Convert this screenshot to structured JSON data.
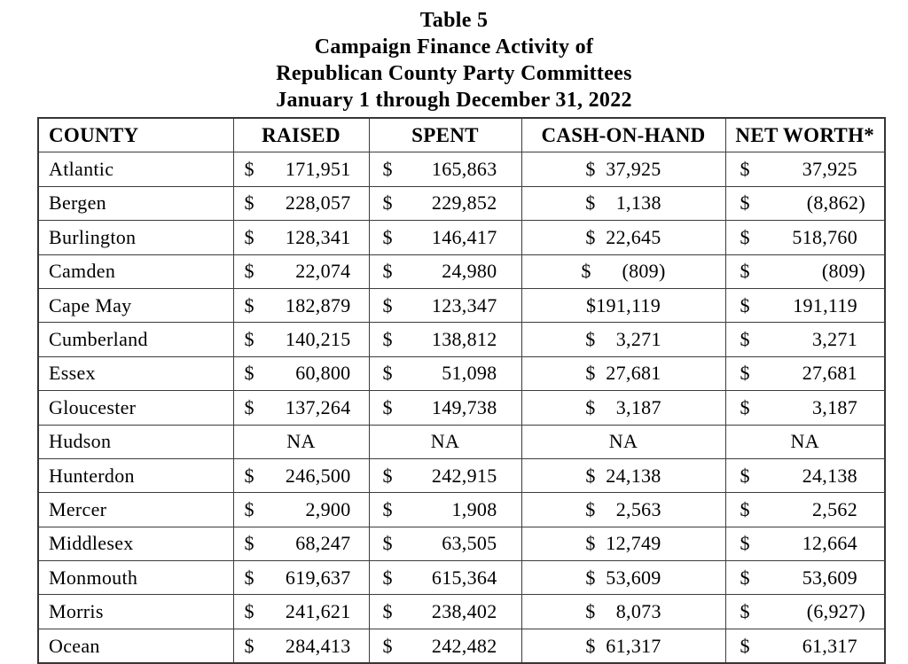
{
  "title": {
    "lines": [
      "Table 5",
      "Campaign Finance Activity of",
      "Republican County Party Committees",
      "January 1 through December 31, 2022"
    ]
  },
  "table": {
    "columns": [
      "COUNTY",
      "RAISED",
      "SPENT",
      "CASH-ON-HAND",
      "NET WORTH*"
    ],
    "currency_symbol": "$",
    "na_label": "NA",
    "rows": [
      {
        "county": "Atlantic",
        "raised": "171,951",
        "spent": "165,863",
        "cash": "$  37,925",
        "net": "37,925"
      },
      {
        "county": "Bergen",
        "raised": "228,057",
        "spent": "229,852",
        "cash": "$    1,138",
        "net": "(8,862)"
      },
      {
        "county": "Burlington",
        "raised": "128,341",
        "spent": "146,417",
        "cash": "$  22,645",
        "net": "518,760"
      },
      {
        "county": "Camden",
        "raised": "22,074",
        "spent": "24,980",
        "cash": "$      (809)",
        "net": "(809)"
      },
      {
        "county": "Cape May",
        "raised": "182,879",
        "spent": "123,347",
        "cash": "$191,119",
        "net": "191,119"
      },
      {
        "county": "Cumberland",
        "raised": "140,215",
        "spent": "138,812",
        "cash": "$    3,271",
        "net": "3,271"
      },
      {
        "county": "Essex",
        "raised": "60,800",
        "spent": "51,098",
        "cash": "$  27,681",
        "net": "27,681"
      },
      {
        "county": "Gloucester",
        "raised": "137,264",
        "spent": "149,738",
        "cash": "$    3,187",
        "net": "3,187"
      },
      {
        "county": "Hudson",
        "raised": null,
        "spent": null,
        "cash": null,
        "net": null
      },
      {
        "county": "Hunterdon",
        "raised": "246,500",
        "spent": "242,915",
        "cash": "$  24,138",
        "net": "24,138"
      },
      {
        "county": "Mercer",
        "raised": "2,900",
        "spent": "1,908",
        "cash": "$    2,563",
        "net": "2,562"
      },
      {
        "county": "Middlesex",
        "raised": "68,247",
        "spent": "63,505",
        "cash": "$  12,749",
        "net": "12,664"
      },
      {
        "county": "Monmouth",
        "raised": "619,637",
        "spent": "615,364",
        "cash": "$  53,609",
        "net": "53,609"
      },
      {
        "county": "Morris",
        "raised": "241,621",
        "spent": "238,402",
        "cash": "$    8,073",
        "net": "(6,927)"
      },
      {
        "county": "Ocean",
        "raised": "284,413",
        "spent": "242,482",
        "cash": "$  61,317",
        "net": "61,317"
      }
    ]
  },
  "colors": {
    "background": "#ffffff",
    "text": "#000000",
    "border": "#3c3c3c"
  }
}
